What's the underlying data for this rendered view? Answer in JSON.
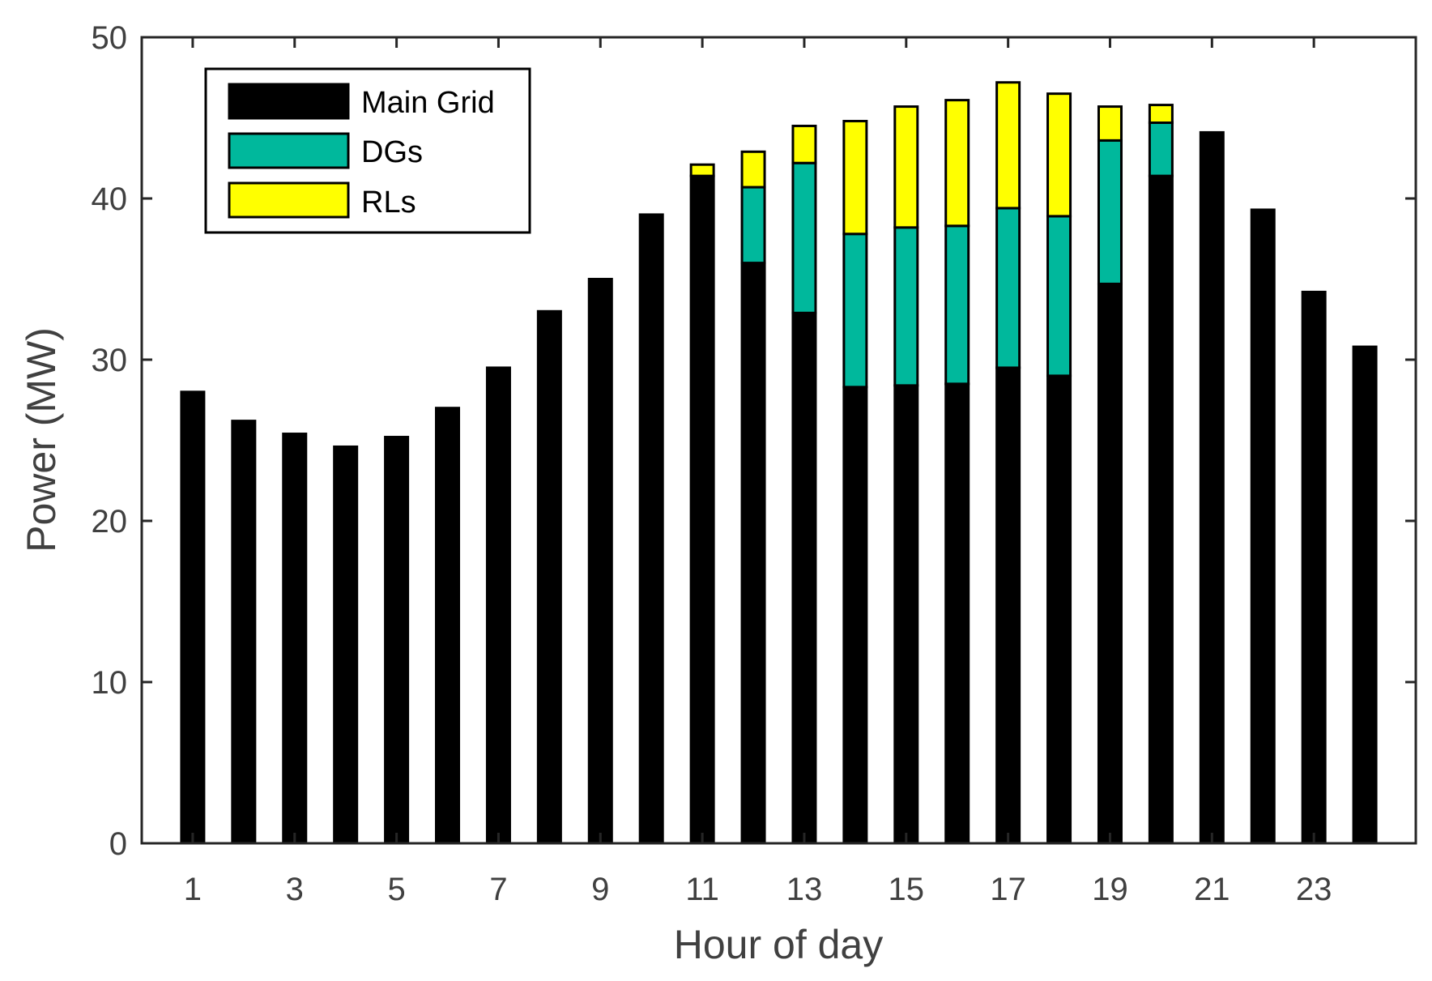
{
  "chart_data": {
    "type": "bar",
    "stacked": true,
    "title": "",
    "xlabel": "Hour of day",
    "ylabel": "Power (MW)",
    "ylim": [
      0,
      50
    ],
    "yticks": [
      0,
      10,
      20,
      30,
      40,
      50
    ],
    "xticks": [
      1,
      3,
      5,
      7,
      9,
      11,
      13,
      15,
      17,
      19,
      21,
      23
    ],
    "xlim": [
      0,
      25
    ],
    "legend_position": "top-left",
    "categories": [
      1,
      2,
      3,
      4,
      5,
      6,
      7,
      8,
      9,
      10,
      11,
      12,
      13,
      14,
      15,
      16,
      17,
      18,
      19,
      20,
      21,
      22,
      23,
      24
    ],
    "series": [
      {
        "name": "Main Grid",
        "color": "#000000",
        "values": [
          28,
          26.2,
          25.4,
          24.6,
          25.2,
          27,
          29.5,
          33,
          35,
          39,
          41.4,
          36,
          32.9,
          28.3,
          28.4,
          28.5,
          29.5,
          29,
          34.7,
          41.4,
          44.1,
          39.3,
          34.2,
          30.8
        ]
      },
      {
        "name": "DGs",
        "color": "#00B89C",
        "values": [
          0,
          0,
          0,
          0,
          0,
          0,
          0,
          0,
          0,
          0,
          0,
          4.7,
          9.3,
          9.5,
          9.8,
          9.8,
          9.9,
          9.9,
          8.9,
          3.3,
          0,
          0,
          0,
          0
        ]
      },
      {
        "name": "RLs",
        "color": "#FFFF00",
        "values": [
          0,
          0,
          0,
          0,
          0,
          0,
          0,
          0,
          0,
          0,
          0.7,
          2.2,
          2.3,
          7,
          7.5,
          7.8,
          7.8,
          7.6,
          2.1,
          1.1,
          0,
          0,
          0,
          0
        ]
      }
    ]
  }
}
